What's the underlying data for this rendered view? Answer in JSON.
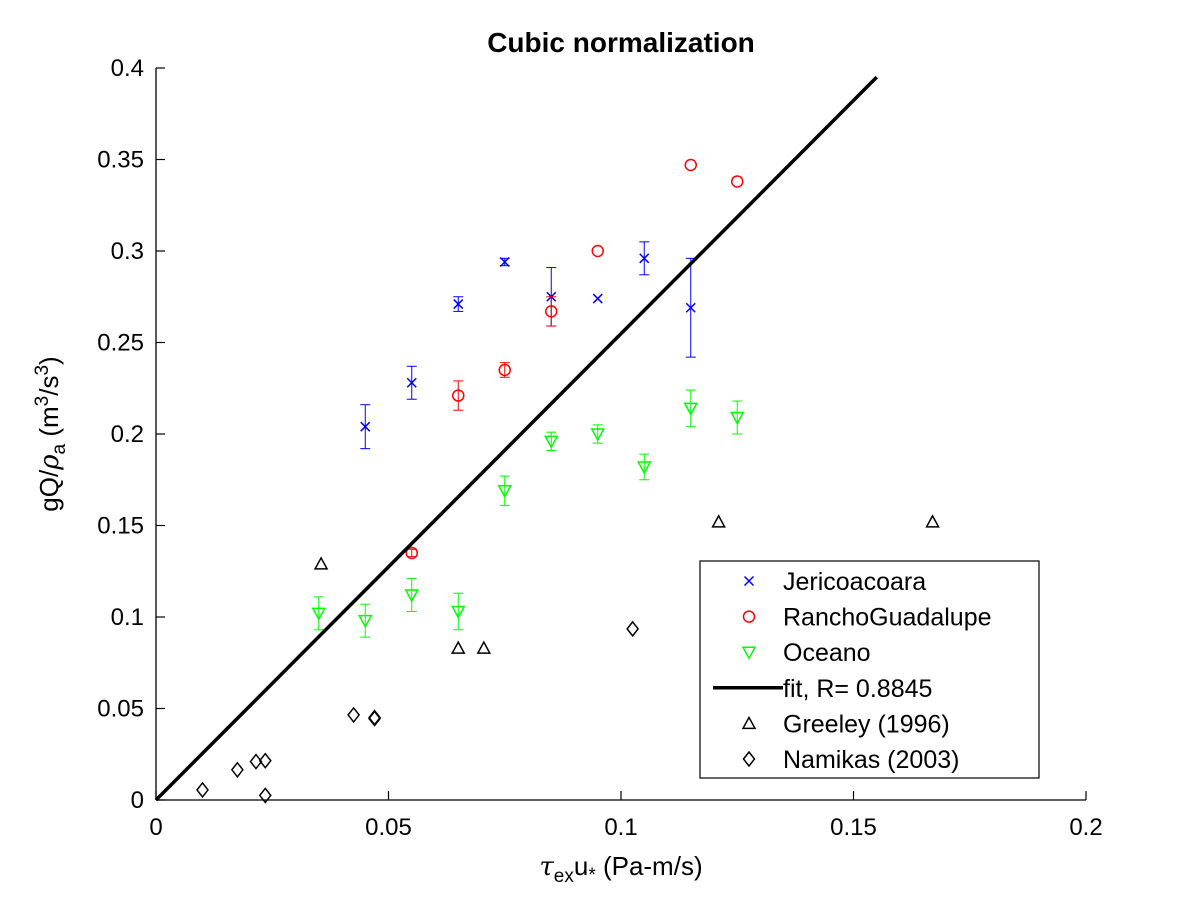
{
  "chart_data": {
    "type": "scatter",
    "title": "Cubic normalization",
    "xlabel": "τexu* (Pa-m/s)",
    "xlabel_parts": {
      "tau": "τ",
      "sub": "ex",
      "u": "u",
      "star": "*",
      "unit": " (Pa-m/s)"
    },
    "ylabel": "gQ/ρa (m3/s3)",
    "ylabel_parts": {
      "pre": "gQ/",
      "rho": "ρ",
      "sub": "a",
      "unit1": " (m",
      "sup1": "3",
      "unit2": "/s",
      "sup2": "3",
      "unit3": ")"
    },
    "xlim": [
      0,
      0.2
    ],
    "ylim": [
      0,
      0.4
    ],
    "xticks": [
      0,
      0.05,
      0.1,
      0.15,
      0.2
    ],
    "xtick_labels": [
      "0",
      "0.05",
      "0.1",
      "0.15",
      "0.2"
    ],
    "yticks": [
      0,
      0.05,
      0.1,
      0.15,
      0.2,
      0.25,
      0.3,
      0.35,
      0.4
    ],
    "ytick_labels": [
      "0",
      "0.05",
      "0.1",
      "0.15",
      "0.2",
      "0.25",
      "0.3",
      "0.35",
      "0.4"
    ],
    "grid": false,
    "legend_position": "bottom-right",
    "series": [
      {
        "name": "Jericoacoara",
        "marker": "x",
        "color": "#0000ff",
        "points": [
          {
            "x": 0.045,
            "y": 0.204,
            "err": 0.012
          },
          {
            "x": 0.055,
            "y": 0.228,
            "err": 0.009
          },
          {
            "x": 0.065,
            "y": 0.271,
            "err": 0.004
          },
          {
            "x": 0.075,
            "y": 0.294,
            "err": 0.002
          },
          {
            "x": 0.085,
            "y": 0.275,
            "err": 0.016
          },
          {
            "x": 0.095,
            "y": 0.274,
            "err": 0
          },
          {
            "x": 0.105,
            "y": 0.296,
            "err": 0.009
          },
          {
            "x": 0.115,
            "y": 0.269,
            "err": 0.027
          }
        ]
      },
      {
        "name": "RanchoGuadalupe",
        "marker": "o",
        "color": "#ff0000",
        "points": [
          {
            "x": 0.055,
            "y": 0.135,
            "err": 0.002
          },
          {
            "x": 0.065,
            "y": 0.221,
            "err": 0.008
          },
          {
            "x": 0.075,
            "y": 0.235,
            "err": 0.004
          },
          {
            "x": 0.085,
            "y": 0.267,
            "err": 0.008
          },
          {
            "x": 0.095,
            "y": 0.3,
            "err": 0
          },
          {
            "x": 0.115,
            "y": 0.347,
            "err": 0
          },
          {
            "x": 0.125,
            "y": 0.338,
            "err": 0
          }
        ]
      },
      {
        "name": "Oceano",
        "marker": "triangle-down",
        "color": "#00ff00",
        "points": [
          {
            "x": 0.035,
            "y": 0.102,
            "err": 0.009
          },
          {
            "x": 0.045,
            "y": 0.098,
            "err": 0.009
          },
          {
            "x": 0.055,
            "y": 0.112,
            "err": 0.009
          },
          {
            "x": 0.065,
            "y": 0.103,
            "err": 0.01
          },
          {
            "x": 0.075,
            "y": 0.169,
            "err": 0.008
          },
          {
            "x": 0.085,
            "y": 0.196,
            "err": 0.005
          },
          {
            "x": 0.095,
            "y": 0.2,
            "err": 0.005
          },
          {
            "x": 0.105,
            "y": 0.182,
            "err": 0.007
          },
          {
            "x": 0.115,
            "y": 0.214,
            "err": 0.01
          },
          {
            "x": 0.125,
            "y": 0.209,
            "err": 0.009
          }
        ]
      },
      {
        "name": "fit, R= 0.8845",
        "marker": "line",
        "color": "#000000",
        "points": [
          {
            "x": 0,
            "y": 0
          },
          {
            "x": 0.155,
            "y": 0.395
          }
        ]
      },
      {
        "name": "Greeley (1996)",
        "marker": "triangle-up",
        "color": "#000000",
        "points": [
          {
            "x": 0.0355,
            "y": 0.129
          },
          {
            "x": 0.065,
            "y": 0.083
          },
          {
            "x": 0.0705,
            "y": 0.083
          },
          {
            "x": 0.121,
            "y": 0.152
          },
          {
            "x": 0.167,
            "y": 0.152
          }
        ]
      },
      {
        "name": "Namikas (2003)",
        "marker": "diamond",
        "color": "#000000",
        "points": [
          {
            "x": 0.01,
            "y": 0.0055
          },
          {
            "x": 0.0175,
            "y": 0.0165
          },
          {
            "x": 0.0215,
            "y": 0.021
          },
          {
            "x": 0.0235,
            "y": 0.0215
          },
          {
            "x": 0.0235,
            "y": 0.0025
          },
          {
            "x": 0.0425,
            "y": 0.0465
          },
          {
            "x": 0.047,
            "y": 0.0445
          },
          {
            "x": 0.047,
            "y": 0.045
          },
          {
            "x": 0.1025,
            "y": 0.0935
          }
        ]
      }
    ]
  }
}
